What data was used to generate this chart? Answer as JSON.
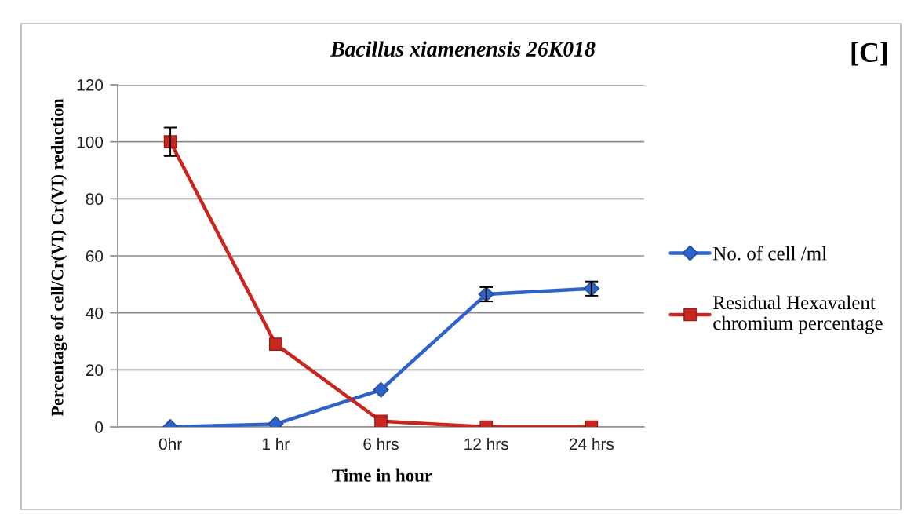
{
  "chart_data": {
    "type": "line",
    "title": "Bacillus xiamenensis 26K018",
    "xlabel": "Time in hour",
    "ylabel": "Percentage of cell/Cr(VI) Cr(VI) reduction",
    "categories": [
      "0hr",
      "1 hr",
      "6 hrs",
      "12 hrs",
      "24 hrs"
    ],
    "series": [
      {
        "name": "No. of cell /ml",
        "color": "#2e63c9",
        "marker": "diamond",
        "values": [
          0,
          1,
          13,
          46.5,
          48.5
        ],
        "errors": [
          null,
          null,
          null,
          2.5,
          2.5
        ]
      },
      {
        "name": "Residual Hexavalent chromium percentage",
        "color": "#c8261f",
        "marker": "square",
        "values": [
          100,
          29,
          2,
          0,
          0
        ],
        "errors": [
          5,
          null,
          null,
          null,
          null
        ]
      }
    ],
    "ylim": [
      0,
      120
    ],
    "yticks": [
      0,
      20,
      40,
      60,
      80,
      100,
      120
    ],
    "grid": "y",
    "legend": "right",
    "annotations": [
      "[C]"
    ]
  }
}
